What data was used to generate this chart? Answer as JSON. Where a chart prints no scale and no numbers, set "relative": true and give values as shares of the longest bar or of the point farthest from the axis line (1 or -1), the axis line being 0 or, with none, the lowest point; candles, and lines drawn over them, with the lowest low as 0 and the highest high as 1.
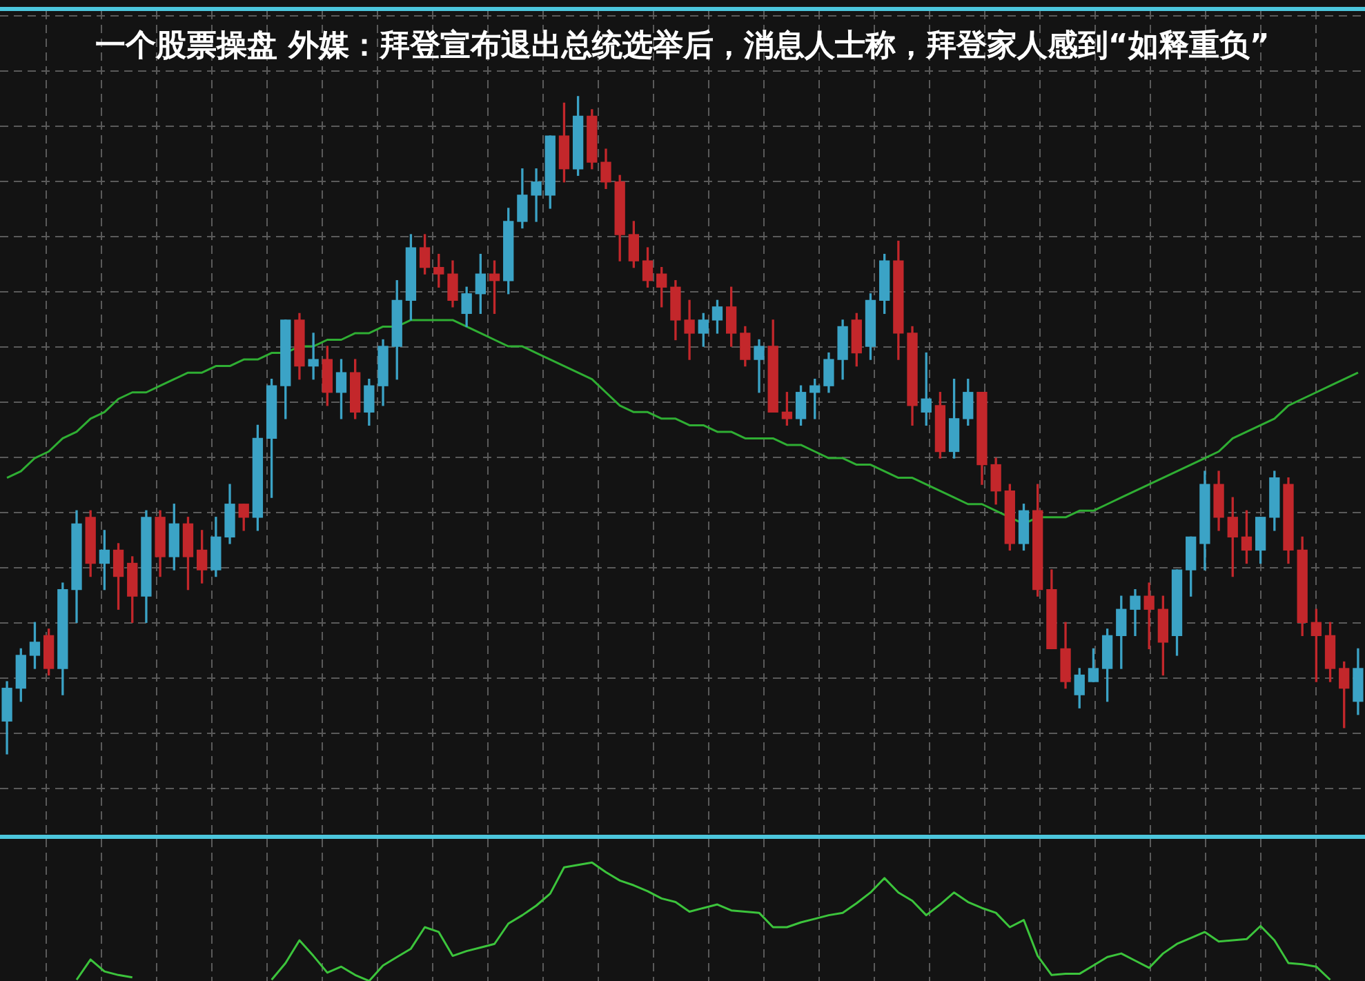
{
  "chart_data": [
    {
      "type": "candlestick",
      "title": "一个股票操盘 外媒：拜登宣布退出总统选举后，消息人士称，拜登家人感到“如释重负”",
      "relative": true,
      "grid": true,
      "tick_labels": false,
      "categories": [
        null,
        null,
        null,
        null,
        null,
        null,
        null,
        null,
        null,
        null,
        null,
        null,
        null,
        null,
        null,
        null,
        null,
        null,
        null,
        null,
        null,
        null,
        null,
        null,
        null,
        null,
        null,
        null,
        null,
        null,
        null,
        null,
        null,
        null,
        null,
        null,
        null,
        null,
        null,
        null,
        null,
        null,
        null,
        null,
        null,
        null,
        null,
        null,
        null,
        null,
        null,
        null,
        null,
        null,
        null,
        null,
        null,
        null,
        null,
        null,
        null,
        null,
        null,
        null,
        null,
        null,
        null,
        null,
        null,
        null,
        null,
        null,
        null,
        null,
        null,
        null,
        null,
        null,
        null,
        null,
        null,
        null,
        null,
        null,
        null,
        null,
        null,
        null,
        null,
        null,
        null,
        null,
        null,
        null,
        null,
        null,
        null,
        null
      ],
      "ohlc": [
        [
          0.05,
          0.11,
          0,
          0.1
        ],
        [
          0.1,
          0.16,
          0.08,
          0.15
        ],
        [
          0.15,
          0.2,
          0.13,
          0.17
        ],
        [
          0.18,
          0.19,
          0.12,
          0.13
        ],
        [
          0.13,
          0.26,
          0.09,
          0.25
        ],
        [
          0.25,
          0.37,
          0.2,
          0.35
        ],
        [
          0.36,
          0.37,
          0.27,
          0.29
        ],
        [
          0.29,
          0.34,
          0.25,
          0.31
        ],
        [
          0.31,
          0.32,
          0.22,
          0.27
        ],
        [
          0.29,
          0.3,
          0.2,
          0.24
        ],
        [
          0.24,
          0.37,
          0.2,
          0.36
        ],
        [
          0.36,
          0.37,
          0.27,
          0.3
        ],
        [
          0.3,
          0.38,
          0.28,
          0.35
        ],
        [
          0.35,
          0.36,
          0.25,
          0.3
        ],
        [
          0.31,
          0.34,
          0.26,
          0.28
        ],
        [
          0.28,
          0.36,
          0.27,
          0.33
        ],
        [
          0.33,
          0.41,
          0.32,
          0.38
        ],
        [
          0.38,
          0.38,
          0.34,
          0.36
        ],
        [
          0.36,
          0.5,
          0.34,
          0.48
        ],
        [
          0.48,
          0.57,
          0.39,
          0.56
        ],
        [
          0.56,
          0.66,
          0.51,
          0.66
        ],
        [
          0.66,
          0.67,
          0.57,
          0.59
        ],
        [
          0.59,
          0.64,
          0.57,
          0.6
        ],
        [
          0.6,
          0.62,
          0.53,
          0.55
        ],
        [
          0.55,
          0.6,
          0.51,
          0.58
        ],
        [
          0.58,
          0.6,
          0.51,
          0.52
        ],
        [
          0.52,
          0.57,
          0.5,
          0.56
        ],
        [
          0.56,
          0.63,
          0.53,
          0.62
        ],
        [
          0.62,
          0.72,
          0.57,
          0.69
        ],
        [
          0.69,
          0.79,
          0.66,
          0.77
        ],
        [
          0.77,
          0.79,
          0.73,
          0.74
        ],
        [
          0.74,
          0.76,
          0.71,
          0.73
        ],
        [
          0.73,
          0.75,
          0.68,
          0.69
        ],
        [
          0.67,
          0.71,
          0.65,
          0.7
        ],
        [
          0.7,
          0.76,
          0.67,
          0.73
        ],
        [
          0.73,
          0.75,
          0.67,
          0.72
        ],
        [
          0.72,
          0.83,
          0.7,
          0.81
        ],
        [
          0.81,
          0.89,
          0.8,
          0.85
        ],
        [
          0.85,
          0.89,
          0.81,
          0.87
        ],
        [
          0.85,
          0.94,
          0.83,
          0.94
        ],
        [
          0.94,
          0.99,
          0.87,
          0.89
        ],
        [
          0.89,
          1,
          0.88,
          0.97
        ],
        [
          0.97,
          0.98,
          0.89,
          0.9
        ],
        [
          0.9,
          0.92,
          0.86,
          0.87
        ],
        [
          0.87,
          0.88,
          0.75,
          0.79
        ],
        [
          0.79,
          0.81,
          0.74,
          0.75
        ],
        [
          0.75,
          0.77,
          0.71,
          0.72
        ],
        [
          0.73,
          0.74,
          0.68,
          0.71
        ],
        [
          0.71,
          0.72,
          0.63,
          0.66
        ],
        [
          0.66,
          0.69,
          0.6,
          0.64
        ],
        [
          0.64,
          0.67,
          0.62,
          0.66
        ],
        [
          0.66,
          0.69,
          0.64,
          0.68
        ],
        [
          0.68,
          0.71,
          0.62,
          0.64
        ],
        [
          0.64,
          0.65,
          0.59,
          0.6
        ],
        [
          0.6,
          0.63,
          0.55,
          0.62
        ],
        [
          0.62,
          0.66,
          0.52,
          0.52
        ],
        [
          0.52,
          0.55,
          0.5,
          0.51
        ],
        [
          0.51,
          0.56,
          0.5,
          0.55
        ],
        [
          0.55,
          0.57,
          0.51,
          0.56
        ],
        [
          0.56,
          0.61,
          0.55,
          0.6
        ],
        [
          0.6,
          0.66,
          0.57,
          0.65
        ],
        [
          0.66,
          0.67,
          0.59,
          0.61
        ],
        [
          0.62,
          0.7,
          0.6,
          0.69
        ],
        [
          0.69,
          0.76,
          0.67,
          0.75
        ],
        [
          0.75,
          0.78,
          0.6,
          0.64
        ],
        [
          0.64,
          0.65,
          0.5,
          0.53
        ],
        [
          0.52,
          0.61,
          0.5,
          0.54
        ],
        [
          0.53,
          0.55,
          0.45,
          0.46
        ],
        [
          0.46,
          0.57,
          0.45,
          0.51
        ],
        [
          0.51,
          0.57,
          0.5,
          0.55
        ],
        [
          0.55,
          0.55,
          0.41,
          0.44
        ],
        [
          0.44,
          0.45,
          0.38,
          0.4
        ],
        [
          0.4,
          0.41,
          0.31,
          0.32
        ],
        [
          0.32,
          0.38,
          0.31,
          0.37
        ],
        [
          0.37,
          0.41,
          0.24,
          0.25
        ],
        [
          0.25,
          0.28,
          0.16,
          0.16
        ],
        [
          0.16,
          0.2,
          0.1,
          0.11
        ],
        [
          0.09,
          0.13,
          0.07,
          0.12
        ],
        [
          0.11,
          0.16,
          0.11,
          0.13
        ],
        [
          0.13,
          0.19,
          0.08,
          0.18
        ],
        [
          0.18,
          0.24,
          0.13,
          0.22
        ],
        [
          0.22,
          0.25,
          0.18,
          0.24
        ],
        [
          0.24,
          0.26,
          0.16,
          0.22
        ],
        [
          0.22,
          0.24,
          0.12,
          0.17
        ],
        [
          0.18,
          0.28,
          0.15,
          0.28
        ],
        [
          0.28,
          0.33,
          0.24,
          0.33
        ],
        [
          0.32,
          0.43,
          0.28,
          0.41
        ],
        [
          0.41,
          0.43,
          0.34,
          0.36
        ],
        [
          0.36,
          0.39,
          0.27,
          0.33
        ],
        [
          0.33,
          0.37,
          0.29,
          0.31
        ],
        [
          0.31,
          0.36,
          0.29,
          0.36
        ],
        [
          0.36,
          0.43,
          0.34,
          0.42
        ],
        [
          0.41,
          0.42,
          0.29,
          0.31
        ],
        [
          0.31,
          0.33,
          0.18,
          0.2
        ],
        [
          0.2,
          0.22,
          0.11,
          0.18
        ],
        [
          0.18,
          0.2,
          0.11,
          0.13
        ],
        [
          0.13,
          0.14,
          0.04,
          0.1
        ],
        [
          0.08,
          0.16,
          0.06,
          0.13
        ]
      ],
      "colors": [
        "#3ba3c6",
        "#3ba3c6",
        "#3ba3c6",
        "#c3272b",
        "#3ba3c6",
        "#3ba3c6",
        "#c3272b",
        "#3ba3c6",
        "#c3272b",
        "#c3272b",
        "#3ba3c6",
        "#c3272b",
        "#3ba3c6",
        "#c3272b",
        "#c3272b",
        "#3ba3c6",
        "#3ba3c6",
        "#c3272b",
        "#3ba3c6",
        "#3ba3c6",
        "#3ba3c6",
        "#c3272b",
        "#3ba3c6",
        "#c3272b",
        "#3ba3c6",
        "#c3272b",
        "#3ba3c6",
        "#3ba3c6",
        "#3ba3c6",
        "#3ba3c6",
        "#c3272b",
        "#c3272b",
        "#c3272b",
        "#3ba3c6",
        "#3ba3c6",
        "#c3272b",
        "#3ba3c6",
        "#3ba3c6",
        "#3ba3c6",
        "#3ba3c6",
        "#c3272b",
        "#3ba3c6",
        "#c3272b",
        "#c3272b",
        "#c3272b",
        "#c3272b",
        "#c3272b",
        "#c3272b",
        "#c3272b",
        "#c3272b",
        "#3ba3c6",
        "#3ba3c6",
        "#c3272b",
        "#c3272b",
        "#3ba3c6",
        "#c3272b",
        "#c3272b",
        "#3ba3c6",
        "#3ba3c6",
        "#3ba3c6",
        "#3ba3c6",
        "#c3272b",
        "#3ba3c6",
        "#3ba3c6",
        "#c3272b",
        "#c3272b",
        "#3ba3c6",
        "#c3272b",
        "#3ba3c6",
        "#3ba3c6",
        "#c3272b",
        "#c3272b",
        "#c3272b",
        "#3ba3c6",
        "#c3272b",
        "#c3272b",
        "#c3272b",
        "#3ba3c6",
        "#3ba3c6",
        "#3ba3c6",
        "#3ba3c6",
        "#3ba3c6",
        "#c3272b",
        "#c3272b",
        "#3ba3c6",
        "#3ba3c6",
        "#3ba3c6",
        "#c3272b",
        "#c3272b",
        "#c3272b",
        "#3ba3c6",
        "#3ba3c6",
        "#c3272b",
        "#c3272b",
        "#c3272b",
        "#c3272b",
        "#c3272b",
        "#3ba3c6"
      ],
      "series": [
        {
          "type": "line",
          "color": "#2fae33",
          "values": [
            0.42,
            0.43,
            0.45,
            0.46,
            0.48,
            0.49,
            0.51,
            0.52,
            0.54,
            0.55,
            0.55,
            0.56,
            0.57,
            0.58,
            0.58,
            0.59,
            0.59,
            0.6,
            0.6,
            0.61,
            0.61,
            0.62,
            0.62,
            0.63,
            0.63,
            0.64,
            0.64,
            0.65,
            0.65,
            0.66,
            0.66,
            0.66,
            0.66,
            0.65,
            0.64,
            0.63,
            0.62,
            0.62,
            0.61,
            0.6,
            0.59,
            0.58,
            0.57,
            0.55,
            0.53,
            0.52,
            0.52,
            0.51,
            0.51,
            0.5,
            0.5,
            0.49,
            0.49,
            0.48,
            0.48,
            0.48,
            0.47,
            0.47,
            0.46,
            0.45,
            0.45,
            0.44,
            0.44,
            0.43,
            0.42,
            0.42,
            0.41,
            0.4,
            0.39,
            0.38,
            0.38,
            0.37,
            0.36,
            0.35,
            0.36,
            0.36,
            0.36,
            0.37,
            0.37,
            0.38,
            0.39,
            0.4,
            0.41,
            0.42,
            0.43,
            0.44,
            0.45,
            0.46,
            0.48,
            0.49,
            0.5,
            0.51,
            0.53,
            0.54,
            0.55,
            0.56,
            0.57,
            0.58
          ]
        }
      ]
    },
    {
      "type": "line",
      "relative": true,
      "grid": "x",
      "tick_labels": false,
      "categories": [
        null,
        null,
        null,
        null,
        null,
        null,
        null,
        null,
        null,
        null,
        null,
        null,
        null,
        null,
        null,
        null,
        null,
        null,
        null,
        null,
        null,
        null,
        null,
        null,
        null,
        null,
        null,
        null,
        null,
        null,
        null,
        null,
        null,
        null,
        null,
        null,
        null,
        null,
        null,
        null,
        null,
        null,
        null,
        null,
        null,
        null,
        null,
        null,
        null,
        null,
        null,
        null,
        null,
        null,
        null,
        null,
        null,
        null,
        null,
        null,
        null,
        null,
        null,
        null,
        null,
        null,
        null,
        null,
        null,
        null,
        null,
        null,
        null,
        null,
        null,
        null,
        null,
        null,
        null,
        null,
        null,
        null,
        null,
        null,
        null,
        null,
        null,
        null,
        null,
        null,
        null,
        null,
        null,
        null,
        null,
        null,
        null,
        null
      ],
      "series": [
        {
          "color": "#3cc43c",
          "values": [
            null,
            null,
            null,
            null,
            null,
            0.02,
            0.19,
            0.09,
            0.06,
            0.04,
            null,
            null,
            null,
            null,
            null,
            null,
            null,
            null,
            null,
            0.02,
            0.16,
            0.35,
            0.22,
            0.08,
            0.13,
            0.06,
            0.01,
            0.14,
            0.21,
            0.28,
            0.46,
            0.42,
            0.22,
            0.26,
            0.29,
            0.32,
            0.49,
            0.56,
            0.64,
            0.74,
            0.96,
            0.98,
            1,
            0.92,
            0.85,
            0.81,
            0.76,
            0.7,
            0.67,
            0.59,
            0.62,
            0.65,
            0.6,
            0.59,
            0.58,
            0.46,
            0.46,
            0.5,
            0.53,
            0.56,
            0.58,
            0.66,
            0.75,
            0.87,
            0.75,
            0.68,
            0.56,
            0.65,
            0.75,
            0.67,
            0.62,
            0.58,
            0.46,
            0.52,
            0.22,
            0.06,
            0.07,
            0.07,
            0.14,
            0.21,
            0.24,
            0.18,
            0.12,
            0.24,
            0.32,
            0.37,
            0.42,
            0.34,
            0.35,
            0.36,
            0.47,
            0.35,
            0.16,
            0.15,
            0.13,
            0.02,
            null,
            null
          ]
        }
      ]
    }
  ]
}
